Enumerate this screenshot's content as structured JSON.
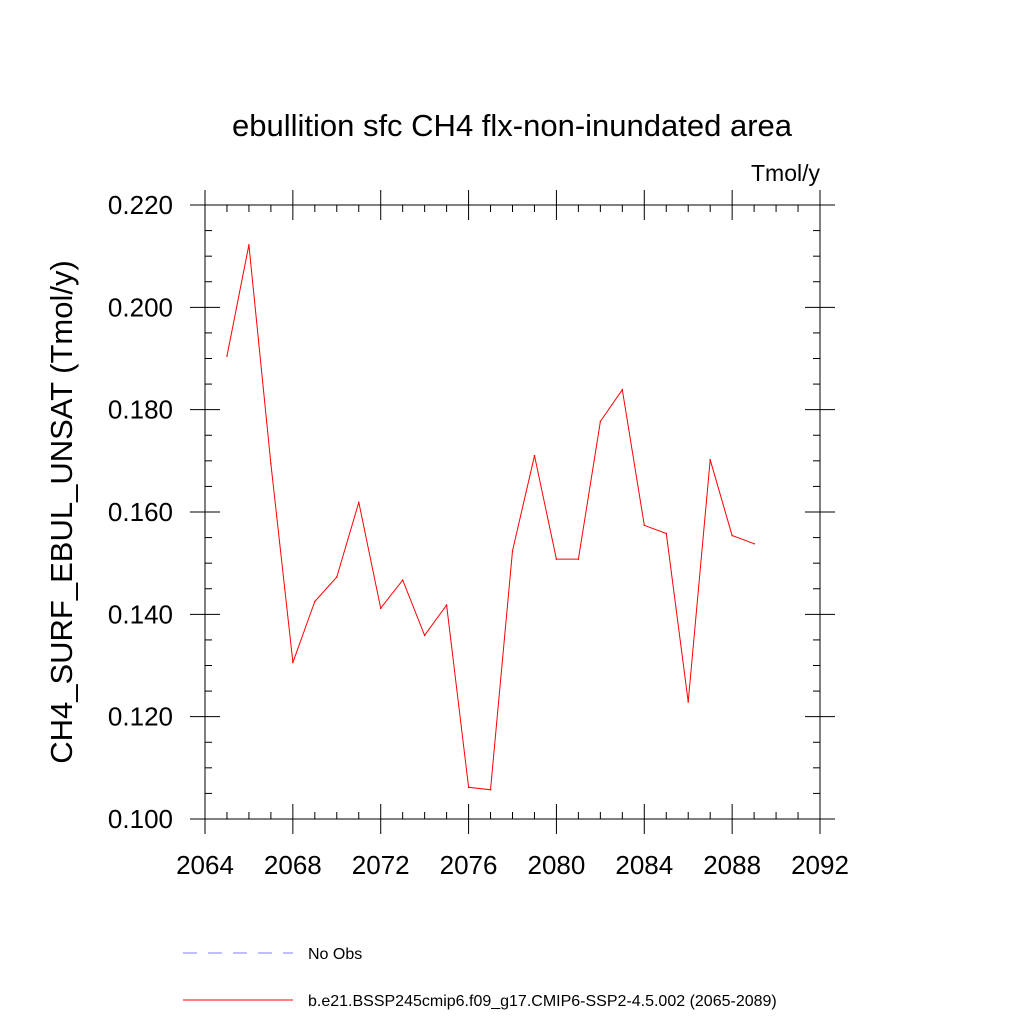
{
  "chart_data": {
    "type": "line",
    "title": "ebullition sfc CH4 flx-non-inundated area",
    "units_label": "Tmol/y",
    "ylabel": "CH4_SURF_EBUL_UNSAT  (Tmol/y)",
    "xlabel": "",
    "xlim": [
      2064,
      2092
    ],
    "ylim": [
      0.1,
      0.22
    ],
    "x_ticks": [
      2064,
      2068,
      2072,
      2076,
      2080,
      2084,
      2088,
      2092
    ],
    "x_tick_labels": [
      "2064",
      "2068",
      "2072",
      "2076",
      "2080",
      "2084",
      "2088",
      "2092"
    ],
    "y_ticks": [
      0.1,
      0.12,
      0.14,
      0.16,
      0.18,
      0.2,
      0.22
    ],
    "y_tick_labels": [
      "0.100",
      "0.120",
      "0.140",
      "0.160",
      "0.180",
      "0.200",
      "0.220"
    ],
    "grid": false,
    "series": [
      {
        "name": "b.e21.BSSP245cmip6.f09_g17.CMIP6-SSP2-4.5.002 (2065-2089)",
        "color": "#ff0000",
        "x": [
          2065,
          2066,
          2067,
          2068,
          2069,
          2070,
          2071,
          2072,
          2073,
          2074,
          2075,
          2076,
          2077,
          2078,
          2079,
          2080,
          2081,
          2082,
          2083,
          2084,
          2085,
          2086,
          2087,
          2088,
          2089
        ],
        "y": [
          0.1905,
          0.2122,
          0.1694,
          0.1306,
          0.1425,
          0.1473,
          0.1619,
          0.1412,
          0.1467,
          0.1359,
          0.1418,
          0.1062,
          0.1057,
          0.1524,
          0.171,
          0.1508,
          0.1508,
          0.1777,
          0.1839,
          0.1574,
          0.1558,
          0.1229,
          0.1702,
          0.1554,
          0.1538
        ]
      }
    ],
    "legend": {
      "placement": "bottom",
      "entries": [
        {
          "label": "No Obs",
          "color": "#7f7fff",
          "style": "dashed"
        },
        {
          "label": "b.e21.BSSP245cmip6.f09_g17.CMIP6-SSP2-4.5.002 (2065-2089)",
          "color": "#ff0000",
          "style": "solid"
        }
      ]
    }
  }
}
